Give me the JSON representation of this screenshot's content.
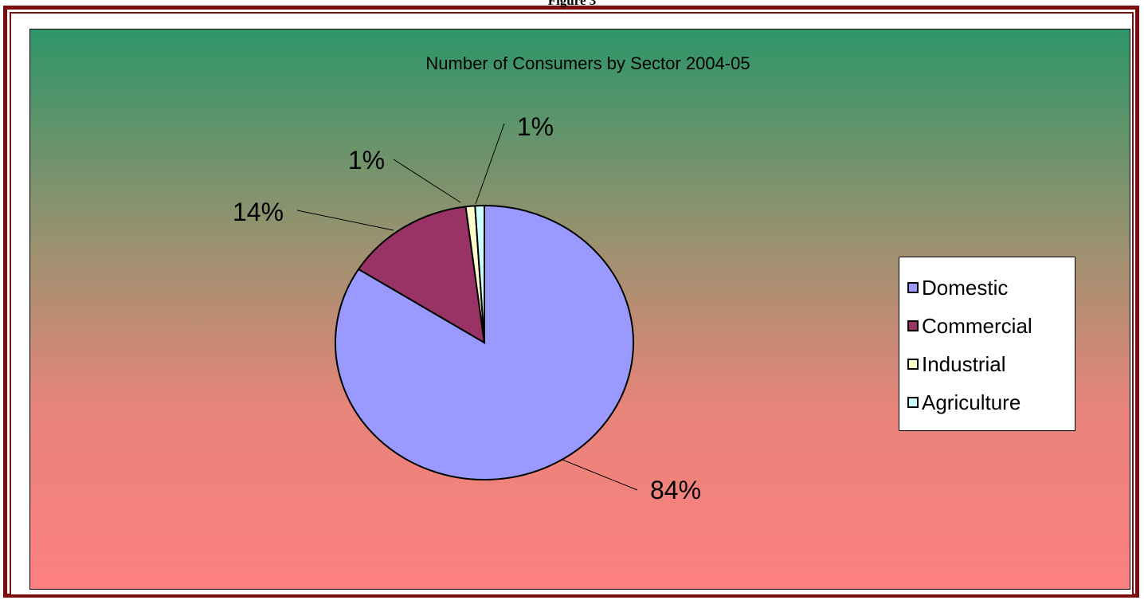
{
  "caption": "Figure 3",
  "chart_data": {
    "type": "pie",
    "title": "Number of Consumers by Sector 2004-05",
    "categories": [
      "Domestic",
      "Commercial",
      "Industrial",
      "Agriculture"
    ],
    "values": [
      84,
      14,
      1,
      1
    ],
    "labels": [
      "84%",
      "14%",
      "1%",
      "1%"
    ],
    "colors": [
      "#9999ff",
      "#993366",
      "#ffffcc",
      "#ccffff"
    ],
    "legend_position": "right",
    "background": {
      "top_color": "#2e9568",
      "bottom_color": "#fd8080"
    }
  }
}
